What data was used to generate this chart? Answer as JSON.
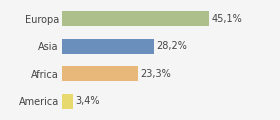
{
  "categories": [
    "Europa",
    "Asia",
    "Africa",
    "America"
  ],
  "values": [
    45.1,
    28.2,
    23.3,
    3.4
  ],
  "labels": [
    "45,1%",
    "28,2%",
    "23,3%",
    "3,4%"
  ],
  "bar_colors": [
    "#adbf8a",
    "#6b8fbd",
    "#e8b87a",
    "#e8d96e"
  ],
  "background_color": "#f5f5f5",
  "xlim": [
    0,
    65
  ],
  "label_fontsize": 7,
  "tick_fontsize": 7,
  "bar_height": 0.55
}
